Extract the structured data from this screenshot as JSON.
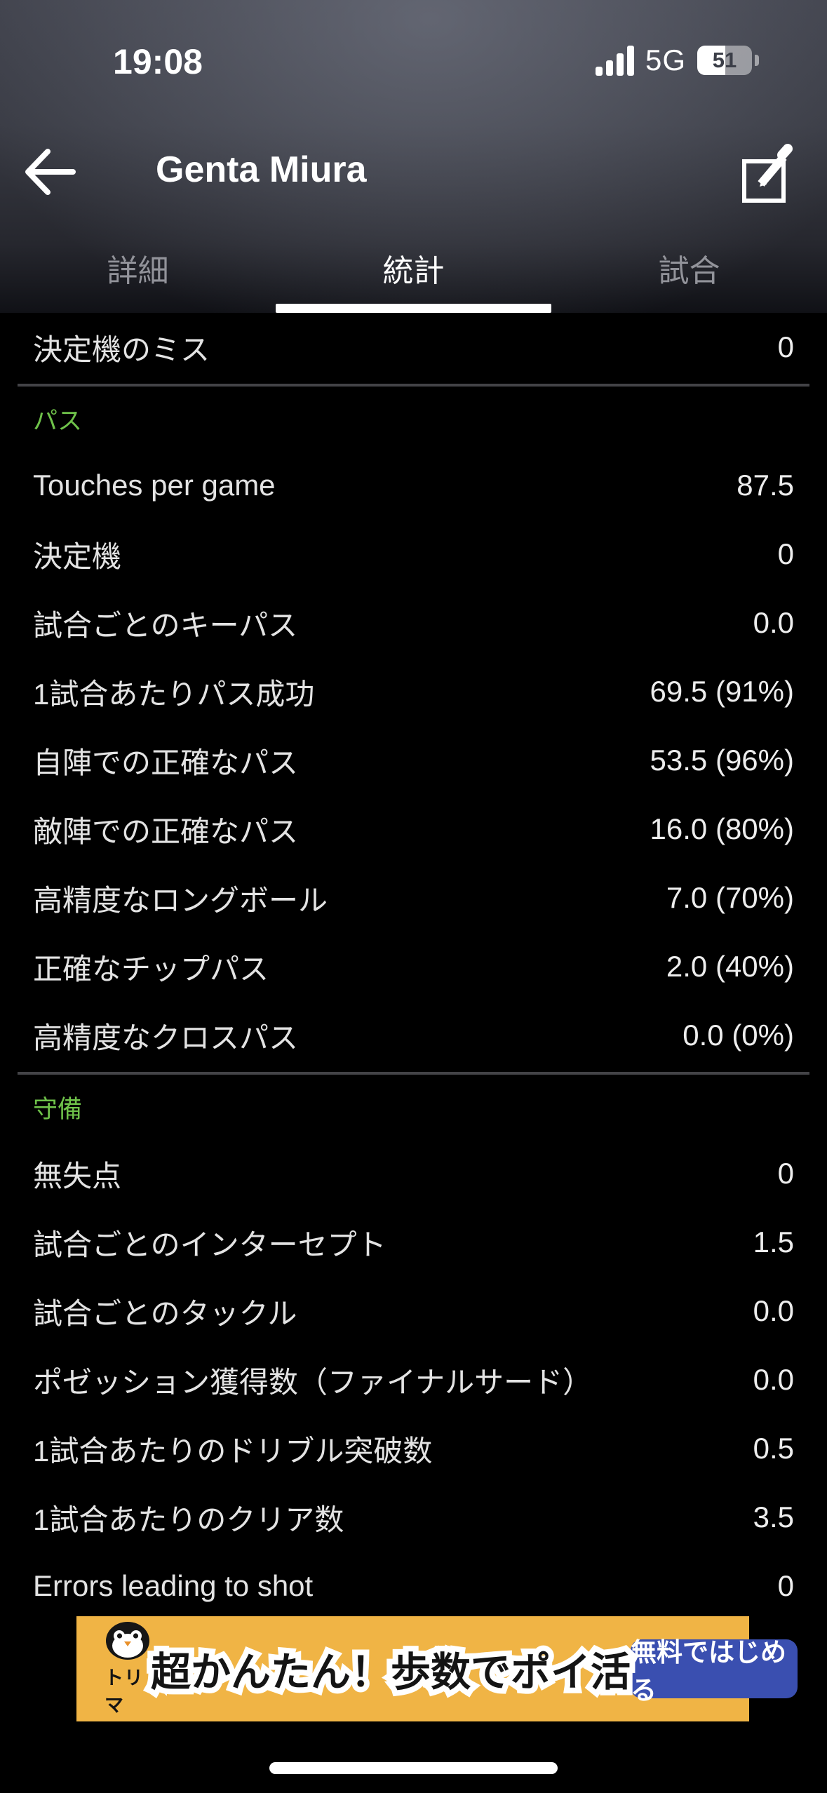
{
  "status_bar": {
    "time": "19:08",
    "network": "5G",
    "battery_percent": "51"
  },
  "header": {
    "title": "Genta Miura"
  },
  "tabs": [
    {
      "label": "詳細",
      "active": false
    },
    {
      "label": "統計",
      "active": true
    },
    {
      "label": "試合",
      "active": false
    }
  ],
  "stats": {
    "leading_rows": [
      {
        "label": "決定機のミス",
        "value": "0"
      }
    ],
    "sections": [
      {
        "title": "パス",
        "rows": [
          {
            "label": "Touches per game",
            "value": "87.5"
          },
          {
            "label": "決定機",
            "value": "0"
          },
          {
            "label": "試合ごとのキーパス",
            "value": "0.0"
          },
          {
            "label": "1試合あたりパス成功",
            "value": "69.5 (91%)"
          },
          {
            "label": "自陣での正確なパス",
            "value": "53.5 (96%)"
          },
          {
            "label": "敵陣での正確なパス",
            "value": "16.0 (80%)"
          },
          {
            "label": "高精度なロングボール",
            "value": "7.0 (70%)"
          },
          {
            "label": "正確なチップパス",
            "value": "2.0 (40%)"
          },
          {
            "label": "高精度なクロスパス",
            "value": "0.0 (0%)"
          }
        ]
      },
      {
        "title": "守備",
        "rows": [
          {
            "label": "無失点",
            "value": "0"
          },
          {
            "label": "試合ごとのインターセプト",
            "value": "1.5"
          },
          {
            "label": "試合ごとのタックル",
            "value": "0.0"
          },
          {
            "label": "ポゼッション獲得数（ファイナルサード）",
            "value": "0.0"
          },
          {
            "label": "1試合あたりのドリブル突破数",
            "value": "0.5"
          },
          {
            "label": "1試合あたりのクリア数",
            "value": "3.5"
          },
          {
            "label": "Errors leading to shot",
            "value": "0"
          }
        ]
      }
    ]
  },
  "ad": {
    "brand": "トリマ",
    "headline": "超かんたん！歩数でポイ活",
    "cta": "無料ではじめる"
  },
  "colors": {
    "accent_green": "#6fc24a",
    "ad_background": "#f0b445",
    "ad_button_blue": "#3a4fb0"
  }
}
